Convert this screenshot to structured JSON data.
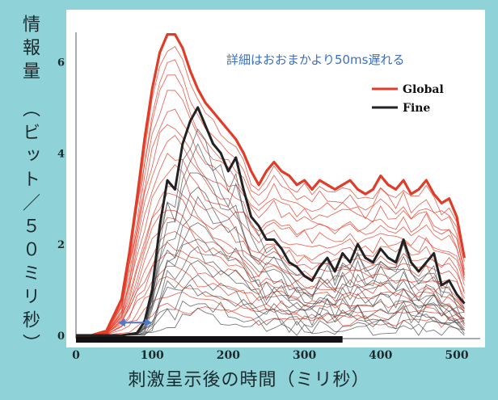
{
  "chart_data": {
    "type": "line",
    "ylabel": "情報量　（ビット／５０ミリ秒）",
    "xlabel": "刺激呈示後の時間（ミリ秒）",
    "xlim": [
      0,
      520
    ],
    "ylim": [
      0,
      7
    ],
    "xticks": [
      0,
      100,
      200,
      300,
      400,
      500
    ],
    "yticks": [
      0,
      2,
      4,
      6
    ],
    "annotation": "詳細はおおまかより50ms遅れる",
    "legend": {
      "placement": "top-right"
    },
    "colors": {
      "global": "#e03c28",
      "fine": "#222222",
      "bar": "#111111",
      "arrow": "#4f78c8"
    },
    "stimulus_bar": [
      0,
      350
    ],
    "arrow_span": [
      55,
      100
    ],
    "series": [
      {
        "name": "Global",
        "x": [
          0,
          20,
          40,
          60,
          70,
          80,
          90,
          100,
          110,
          120,
          130,
          140,
          150,
          160,
          170,
          180,
          190,
          200,
          210,
          220,
          230,
          240,
          250,
          260,
          270,
          280,
          290,
          300,
          310,
          320,
          330,
          340,
          350,
          360,
          370,
          380,
          390,
          400,
          410,
          420,
          430,
          440,
          450,
          460,
          470,
          480,
          490,
          500,
          510
        ],
        "y": [
          0,
          0,
          0.1,
          0.8,
          1.8,
          3.0,
          4.3,
          5.4,
          6.2,
          6.6,
          6.6,
          6.3,
          5.8,
          5.4,
          5.1,
          4.9,
          4.7,
          4.5,
          4.3,
          4.0,
          3.6,
          3.3,
          3.6,
          3.8,
          3.6,
          3.5,
          3.3,
          3.4,
          3.2,
          3.4,
          3.3,
          3.2,
          3.3,
          3.4,
          3.2,
          3.1,
          3.2,
          3.5,
          3.3,
          3.2,
          3.4,
          3.1,
          3.2,
          3.4,
          3.1,
          2.9,
          3.0,
          2.6,
          1.7
        ]
      },
      {
        "name": "Fine",
        "x": [
          0,
          20,
          40,
          60,
          80,
          90,
          100,
          110,
          120,
          130,
          140,
          150,
          160,
          170,
          180,
          190,
          200,
          210,
          220,
          230,
          240,
          250,
          260,
          270,
          280,
          290,
          300,
          310,
          320,
          330,
          340,
          350,
          360,
          370,
          380,
          390,
          400,
          410,
          420,
          430,
          440,
          450,
          460,
          470,
          480,
          490,
          500,
          510
        ],
        "y": [
          0,
          0,
          0,
          0,
          0.05,
          0.3,
          1.0,
          2.4,
          3.4,
          3.2,
          4.2,
          4.7,
          5.0,
          4.6,
          4.2,
          4.0,
          3.6,
          3.9,
          3.2,
          2.6,
          2.4,
          2.1,
          2.1,
          1.9,
          1.6,
          1.5,
          1.3,
          1.2,
          1.5,
          1.7,
          1.4,
          1.8,
          1.6,
          2.0,
          1.7,
          1.6,
          1.9,
          1.7,
          1.6,
          2.1,
          1.6,
          1.4,
          1.6,
          1.8,
          1.1,
          1.2,
          0.9,
          0.7
        ]
      }
    ]
  }
}
